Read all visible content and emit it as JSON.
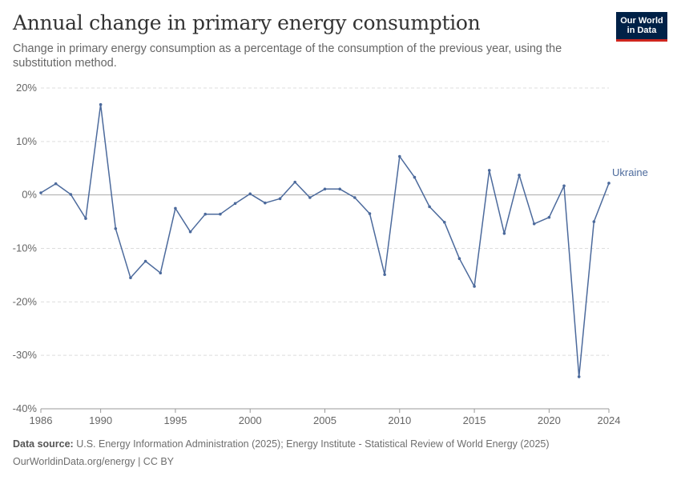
{
  "header": {
    "title": "Annual change in primary energy consumption",
    "subtitle": "Change in primary energy consumption as a percentage of the consumption of the previous year, using the substitution method."
  },
  "logo": {
    "line1": "Our World",
    "line2": "in Data"
  },
  "footer": {
    "source_label": "Data source:",
    "source_text": "U.S. Energy Information Administration (2025); Energy Institute - Statistical Review of World Energy (2025)",
    "link_text": "OurWorldinData.org/energy | CC BY"
  },
  "colors": {
    "series": "#4c6a9c",
    "zero_line": "#aaaaaa",
    "grid": "#dddddd"
  },
  "chart_data": {
    "type": "line",
    "title": "Annual change in primary energy consumption",
    "ylim": [
      -40,
      20
    ],
    "yticks": [
      20,
      10,
      0,
      -10,
      -20,
      -30,
      -40
    ],
    "ytick_labels": [
      "20%",
      "10%",
      "0%",
      "-10%",
      "-20%",
      "-30%",
      "-40%"
    ],
    "xlim": [
      1986,
      2024
    ],
    "xticks": [
      1986,
      1990,
      1995,
      2000,
      2005,
      2010,
      2015,
      2020,
      2024
    ],
    "xtick_labels": [
      "1986",
      "1990",
      "1995",
      "2000",
      "2005",
      "2010",
      "2015",
      "2020",
      "2024"
    ],
    "grid": true,
    "series": [
      {
        "name": "Ukraine",
        "x": [
          1986,
          1987,
          1988,
          1989,
          1990,
          1991,
          1992,
          1993,
          1994,
          1995,
          1996,
          1997,
          1998,
          1999,
          2000,
          2001,
          2002,
          2003,
          2004,
          2005,
          2006,
          2007,
          2008,
          2009,
          2010,
          2011,
          2012,
          2013,
          2014,
          2015,
          2016,
          2017,
          2018,
          2019,
          2020,
          2021,
          2022,
          2023,
          2024
        ],
        "y": [
          0.4,
          2.1,
          0.1,
          -4.4,
          16.9,
          -6.3,
          -15.5,
          -12.4,
          -14.6,
          -2.5,
          -6.9,
          -3.6,
          -3.6,
          -1.6,
          0.2,
          -1.5,
          -0.7,
          2.4,
          -0.5,
          1.1,
          1.1,
          -0.5,
          -3.5,
          -14.9,
          7.2,
          3.3,
          -2.2,
          -5.1,
          -11.9,
          -17.1,
          4.6,
          -7.2,
          3.7,
          -5.4,
          -4.2,
          1.7,
          -34.0,
          -5.0,
          2.2
        ]
      }
    ]
  }
}
